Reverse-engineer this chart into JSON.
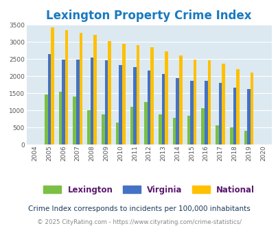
{
  "title": "Lexington Property Crime Index",
  "years": [
    2004,
    2005,
    2006,
    2007,
    2008,
    2009,
    2010,
    2011,
    2012,
    2013,
    2014,
    2015,
    2016,
    2017,
    2018,
    2019,
    2020
  ],
  "lexington": [
    0,
    1470,
    1550,
    1400,
    1010,
    880,
    640,
    1100,
    1250,
    880,
    780,
    840,
    1060,
    570,
    510,
    400,
    0
  ],
  "virginia": [
    0,
    2650,
    2490,
    2490,
    2540,
    2460,
    2330,
    2260,
    2160,
    2070,
    1950,
    1860,
    1860,
    1800,
    1660,
    1630,
    0
  ],
  "national": [
    0,
    3420,
    3340,
    3260,
    3210,
    3030,
    2950,
    2910,
    2850,
    2720,
    2600,
    2490,
    2470,
    2360,
    2210,
    2100,
    0
  ],
  "bar_colors": {
    "lexington": "#7bc043",
    "virginia": "#4472c4",
    "national": "#ffc000"
  },
  "ylim": [
    0,
    3500
  ],
  "yticks": [
    0,
    500,
    1000,
    1500,
    2000,
    2500,
    3000,
    3500
  ],
  "plot_bg": "#dce9f0",
  "title_color": "#1a7abf",
  "footer_note": "Crime Index corresponds to incidents per 100,000 inhabitants",
  "copyright": "© 2025 CityRating.com - https://www.cityrating.com/crime-statistics/",
  "legend_labels": [
    "Lexington",
    "Virginia",
    "National"
  ],
  "legend_text_color": "#5b1a6e",
  "title_fontsize": 12,
  "bar_width": 0.22
}
